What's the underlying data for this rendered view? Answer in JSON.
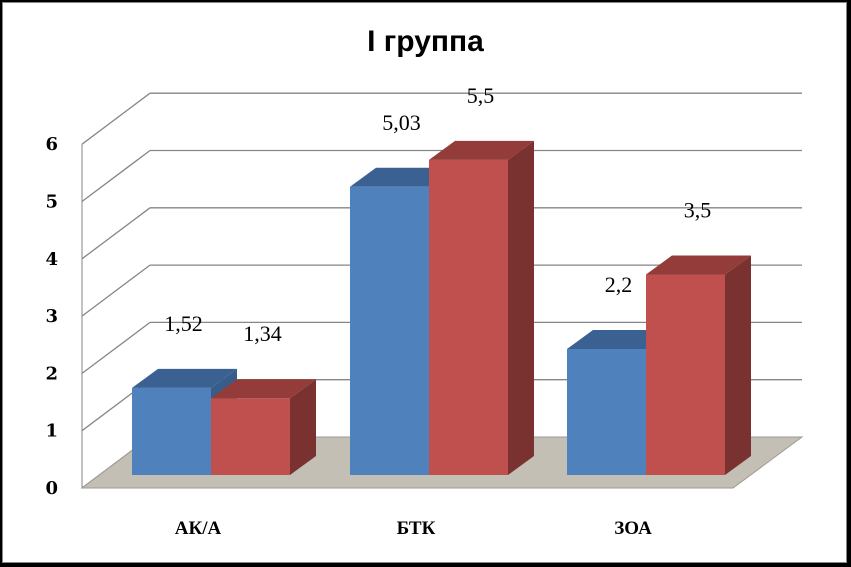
{
  "chart_data": {
    "type": "bar",
    "title": "I группа",
    "xlabel": "",
    "ylabel": "",
    "categories": [
      "АК/А",
      "БТК",
      "ЗОА"
    ],
    "series": [
      {
        "values": [
          1.52,
          5.03,
          2.2
        ],
        "labels": [
          "1,52",
          "5,03",
          "2,2"
        ],
        "color": "#4f81bd",
        "top": "#3a6191",
        "side": "#385d8a"
      },
      {
        "values": [
          1.34,
          5.5,
          3.5
        ],
        "labels": [
          "1,34",
          "5,5",
          "3,5"
        ],
        "color": "#c0504d",
        "top": "#943c39",
        "side": "#7a3230"
      }
    ],
    "ylim": [
      0,
      6
    ],
    "yticks": [
      "0",
      "1",
      "2",
      "3",
      "4",
      "5",
      "6"
    ],
    "grid": true,
    "style": "3d-clustered-column",
    "floor_color": "#c4bfb5"
  }
}
